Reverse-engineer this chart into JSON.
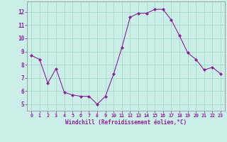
{
  "x": [
    0,
    1,
    2,
    3,
    4,
    5,
    6,
    7,
    8,
    9,
    10,
    11,
    12,
    13,
    14,
    15,
    16,
    17,
    18,
    19,
    20,
    21,
    22,
    23
  ],
  "y": [
    8.7,
    8.4,
    6.6,
    7.7,
    5.9,
    5.7,
    5.6,
    5.6,
    5.0,
    5.6,
    7.3,
    9.3,
    11.6,
    11.9,
    11.9,
    12.2,
    12.2,
    11.4,
    10.2,
    8.9,
    8.4,
    7.6,
    7.8,
    7.3
  ],
  "line_color": "#882299",
  "marker": "D",
  "marker_size": 2.0,
  "bg_color": "#cceee8",
  "grid_color": "#aaddcc",
  "xlabel": "Windchill (Refroidissement éolien,°C)",
  "xlabel_color": "#882299",
  "tick_color": "#882299",
  "ylim": [
    4.5,
    12.8
  ],
  "xlim": [
    -0.5,
    23.5
  ],
  "yticks": [
    5,
    6,
    7,
    8,
    9,
    10,
    11,
    12
  ],
  "xticks": [
    0,
    1,
    2,
    3,
    4,
    5,
    6,
    7,
    8,
    9,
    10,
    11,
    12,
    13,
    14,
    15,
    16,
    17,
    18,
    19,
    20,
    21,
    22,
    23
  ]
}
